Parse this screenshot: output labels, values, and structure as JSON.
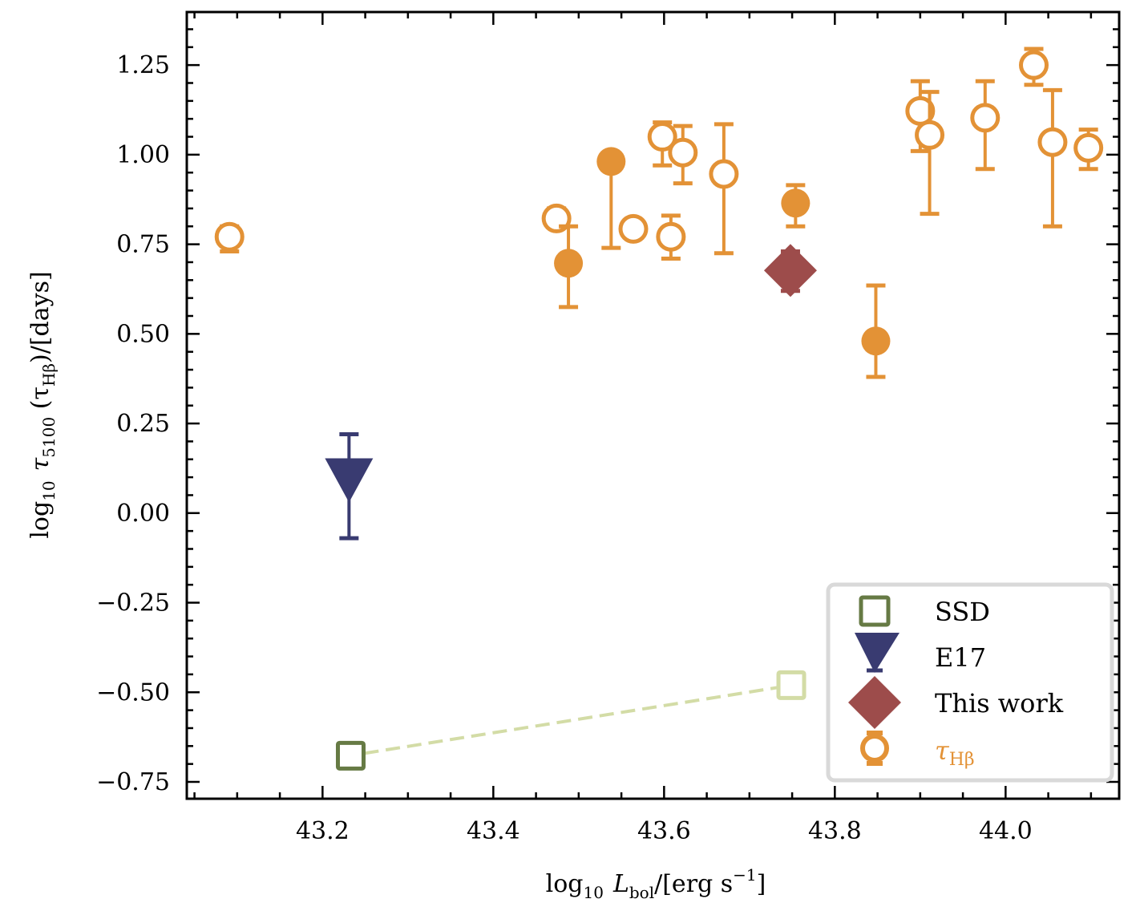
{
  "chart_data": {
    "type": "scatter",
    "title": "",
    "xlabel": "log10 L_bol/[erg s^-1]",
    "xlabel_parts": {
      "main": "log",
      "sub": "10",
      "var": "L",
      "varsub": "bol",
      "unit": "/[erg s",
      "sup": "−1",
      "close": "]"
    },
    "ylabel": "log10 τ5100 (τHβ)/[days]",
    "ylabel_parts": {
      "main": "log",
      "sub": "10",
      "var": "τ",
      "varsub": "5100",
      "paren_open": " (τ",
      "paren_sub": "Hβ",
      "rest": ")/[days]"
    },
    "xlim": [
      43.041,
      44.133
    ],
    "ylim": [
      -0.797,
      1.398
    ],
    "xticks": [
      43.2,
      43.4,
      43.6,
      43.8,
      44.0
    ],
    "xtick_labels": [
      "43.2",
      "43.4",
      "43.6",
      "43.8",
      "44.0"
    ],
    "yticks": [
      1.25,
      1.0,
      0.75,
      0.5,
      0.25,
      0.0,
      -0.25,
      -0.5,
      -0.75
    ],
    "ytick_labels": [
      "1.25",
      "1.00",
      "0.75",
      "0.50",
      "0.25",
      "0.00",
      "−0.25",
      "−0.50",
      "−0.75"
    ],
    "grid": false,
    "legend_position": "lower-right",
    "colors": {
      "ssd_dark": "#667a44",
      "ssd_light": "#d3dca6",
      "e17": "#393b71",
      "this_work": "#9d4c4b",
      "hbeta": "#e39236",
      "legend_border": "#d9d9d9"
    },
    "legend": [
      {
        "label": "SSD",
        "marker": "square-open",
        "color": "#667a44"
      },
      {
        "label": "E17",
        "marker": "triangle-down",
        "color": "#393b71"
      },
      {
        "label": "This work",
        "marker": "diamond",
        "color": "#9d4c4b"
      },
      {
        "label": "τHβ",
        "marker": "circle-open-errorbar",
        "color": "#e39236"
      }
    ],
    "series": [
      {
        "name": "SSD",
        "marker": "square-open",
        "line": "dashed",
        "points": [
          {
            "x": 43.233,
            "y": -0.677,
            "color": "#667a44"
          },
          {
            "x": 43.749,
            "y": -0.48,
            "color": "#d3dca6"
          }
        ]
      },
      {
        "name": "E17",
        "marker": "triangle-down",
        "points": [
          {
            "x": 43.231,
            "y": 0.07,
            "ylo": -0.07,
            "yhi": 0.22
          }
        ]
      },
      {
        "name": "This work",
        "marker": "diamond",
        "points": [
          {
            "x": 43.748,
            "y": 0.677,
            "ylo": 0.62,
            "yhi": 0.73
          }
        ]
      },
      {
        "name": "τHβ",
        "marker": "circle",
        "points": [
          {
            "x": 43.091,
            "y": 0.771,
            "ylo": 0.73,
            "yhi": 0.8,
            "filled": false
          },
          {
            "x": 43.474,
            "y": 0.822,
            "ylo": 0.8,
            "yhi": 0.85,
            "filled": false
          },
          {
            "x": 43.488,
            "y": 0.697,
            "ylo": 0.575,
            "yhi": 0.8,
            "filled": true
          },
          {
            "x": 43.538,
            "y": 0.981,
            "ylo": 0.74,
            "yhi": 0.981,
            "filled": true
          },
          {
            "x": 43.564,
            "y": 0.793,
            "ylo": 0.79,
            "yhi": 0.8,
            "filled": false
          },
          {
            "x": 43.598,
            "y": 1.05,
            "ylo": 0.97,
            "yhi": 1.09,
            "filled": false
          },
          {
            "x": 43.608,
            "y": 0.771,
            "ylo": 0.71,
            "yhi": 0.83,
            "filled": false
          },
          {
            "x": 43.622,
            "y": 1.006,
            "ylo": 0.92,
            "yhi": 1.08,
            "filled": false
          },
          {
            "x": 43.67,
            "y": 0.946,
            "ylo": 0.725,
            "yhi": 1.085,
            "filled": false
          },
          {
            "x": 43.754,
            "y": 0.865,
            "ylo": 0.8,
            "yhi": 0.915,
            "filled": true
          },
          {
            "x": 43.848,
            "y": 0.48,
            "ylo": 0.38,
            "yhi": 0.635,
            "filled": true
          },
          {
            "x": 43.9,
            "y": 1.122,
            "ylo": 1.01,
            "yhi": 1.205,
            "filled": false
          },
          {
            "x": 43.911,
            "y": 1.055,
            "ylo": 0.835,
            "yhi": 1.175,
            "filled": false
          },
          {
            "x": 43.976,
            "y": 1.103,
            "ylo": 0.96,
            "yhi": 1.205,
            "filled": false
          },
          {
            "x": 44.033,
            "y": 1.25,
            "ylo": 1.195,
            "yhi": 1.295,
            "filled": false
          },
          {
            "x": 44.055,
            "y": 1.035,
            "ylo": 0.8,
            "yhi": 1.18,
            "filled": false
          },
          {
            "x": 44.097,
            "y": 1.019,
            "ylo": 0.96,
            "yhi": 1.07,
            "filled": false
          }
        ]
      }
    ]
  }
}
